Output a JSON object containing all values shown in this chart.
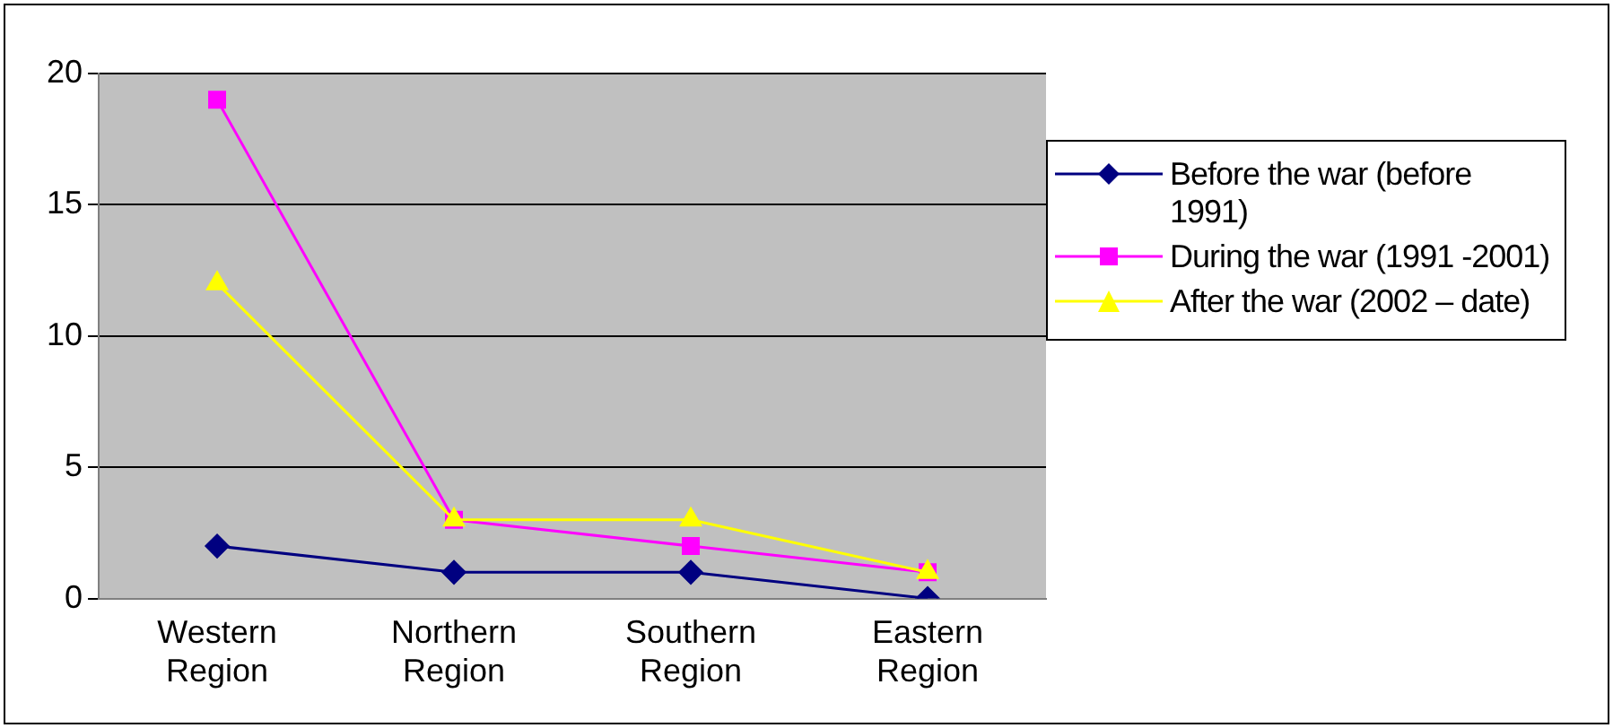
{
  "chart_data": {
    "type": "line",
    "categories": [
      "Western Region",
      "Northern Region",
      "Southern Region",
      "Eastern Region"
    ],
    "series": [
      {
        "name": "Before the war (before 1991)",
        "color": "#000080",
        "marker": "diamond",
        "values": [
          2,
          1,
          1,
          0
        ]
      },
      {
        "name": "During the war (1991 -2001)",
        "color": "#ff00ff",
        "marker": "square",
        "values": [
          19,
          3,
          2,
          1
        ]
      },
      {
        "name": "After the war (2002 – date)",
        "color": "#ffff00",
        "marker": "triangle",
        "values": [
          12,
          3,
          3,
          1
        ]
      }
    ],
    "ylim": [
      0,
      20
    ],
    "yticks": [
      0,
      5,
      10,
      15,
      20
    ],
    "grid": "y",
    "legend": "right"
  }
}
